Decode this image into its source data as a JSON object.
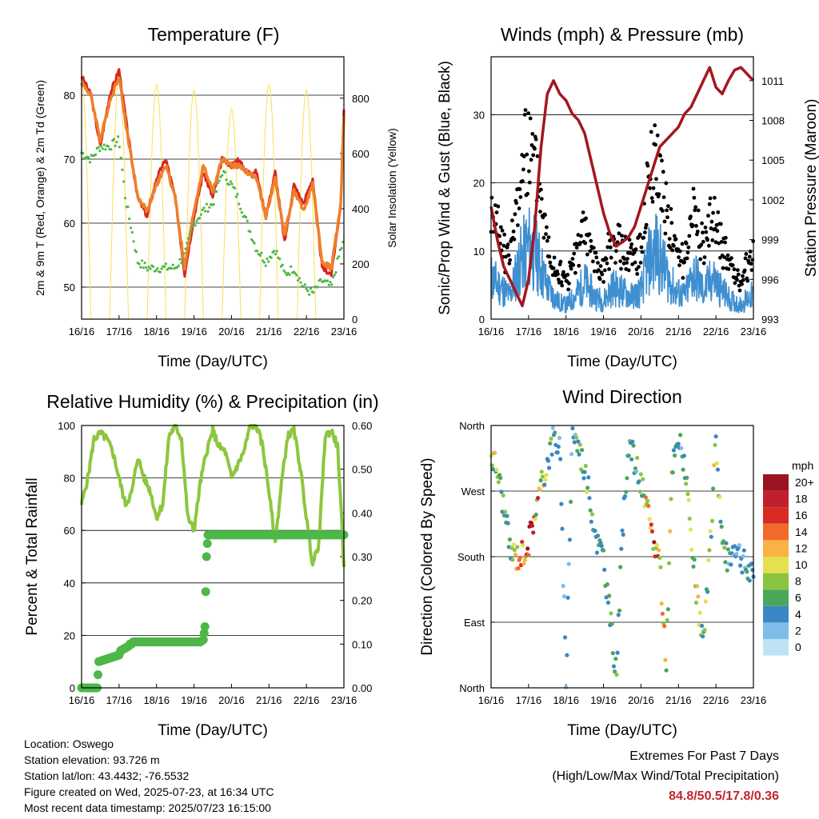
{
  "colors": {
    "red": "#d7261e",
    "orange": "#ef7f2a",
    "green": "#4db848",
    "yellow": "#f9e05a",
    "blue": "#3f8fd0",
    "black": "#000000",
    "maroon": "#a3171f",
    "rh_green": "#8dc63f",
    "rain_green": "#4db848"
  },
  "time_ticks": [
    "16/16",
    "17/16",
    "18/16",
    "19/16",
    "20/16",
    "21/16",
    "22/16",
    "23/16"
  ],
  "chart_data": [
    {
      "id": "temperature",
      "type": "line",
      "title": "Temperature (F)",
      "xlabel": "Time (Day/UTC)",
      "ylabel": "2m & 9m T (Red, Orange) & 2m Td (Green)",
      "y2label": "Solar Insolation (Yellow)",
      "ylim": [
        45,
        86
      ],
      "yticks": [
        50,
        60,
        70,
        80
      ],
      "y2lim": [
        0,
        950
      ],
      "y2ticks": [
        0,
        200,
        400,
        600,
        800
      ],
      "x_hours": [
        0,
        6,
        12,
        18,
        24,
        28,
        32,
        36,
        42,
        48,
        54,
        60,
        66,
        72,
        78,
        84,
        90,
        96,
        100,
        106,
        112,
        118,
        124,
        130,
        136,
        142,
        148,
        154,
        160,
        166,
        168
      ],
      "series": [
        {
          "name": "2m T",
          "color": "#d7261e",
          "values": [
            83,
            80,
            72,
            80,
            84,
            77,
            70,
            64,
            61,
            67,
            70,
            64,
            52,
            61,
            68,
            64,
            70,
            69,
            70,
            68,
            68,
            61,
            68,
            57,
            66,
            63,
            67,
            53,
            52,
            63,
            78
          ]
        },
        {
          "name": "9m T",
          "color": "#ef7f2a",
          "values": [
            82,
            80,
            73,
            79,
            83,
            76,
            70,
            64,
            62,
            66,
            69,
            64,
            53,
            62,
            69,
            65,
            70,
            69,
            69,
            68,
            67,
            61,
            67,
            58,
            65,
            62,
            66,
            54,
            53,
            63,
            77
          ]
        },
        {
          "name": "2m Td",
          "color": "#4db848",
          "values": [
            71,
            70,
            72,
            72,
            73,
            64,
            59,
            54,
            53,
            53,
            53,
            53,
            55,
            60,
            62,
            63,
            68,
            66,
            64,
            60,
            56,
            54,
            56,
            52,
            53,
            50,
            49,
            51,
            50,
            56,
            57
          ]
        }
      ],
      "solar": {
        "peak_hours": [
          0,
          24,
          48,
          72,
          96,
          120,
          144
        ],
        "peaks": [
          860,
          880,
          850,
          830,
          760,
          850,
          830
        ]
      }
    },
    {
      "id": "winds",
      "type": "scatter",
      "title": "Winds (mph) & Pressure (mb)",
      "xlabel": "Time (Day/UTC)",
      "ylabel": "Sonic/Prop Wind & Gust (Blue, Black)",
      "y2label": "Station Pressure (Maroon)",
      "ylim": [
        0,
        38.5
      ],
      "yticks": [
        0,
        10,
        20,
        30
      ],
      "y2lim": [
        993,
        1012.8
      ],
      "y2ticks": [
        993,
        996,
        999,
        1002,
        1005,
        1008,
        1011
      ],
      "pressure": {
        "x_hours": [
          0,
          4,
          8,
          12,
          16,
          20,
          24,
          28,
          32,
          36,
          40,
          44,
          48,
          52,
          56,
          60,
          64,
          68,
          72,
          76,
          80,
          84,
          88,
          92,
          96,
          100,
          104,
          108,
          112,
          116,
          120,
          124,
          128,
          132,
          136,
          140,
          144,
          148,
          152,
          156,
          160,
          164,
          168
        ],
        "values": [
          1001.5,
          999,
          997,
          996,
          995,
          994,
          996,
          1000,
          1006,
          1010,
          1011,
          1010,
          1009.5,
          1008.5,
          1008,
          1007,
          1005,
          1003,
          1001,
          999.5,
          998.5,
          998.8,
          999.2,
          1000,
          1001.5,
          1003,
          1004.5,
          1006,
          1006.5,
          1007,
          1007.5,
          1008.5,
          1009,
          1010,
          1011,
          1012,
          1010.5,
          1010,
          1011,
          1011.8,
          1012,
          1011.5,
          1011
        ]
      },
      "wind_envelope": {
        "x_hours": [
          0,
          6,
          12,
          18,
          24,
          30,
          36,
          42,
          48,
          54,
          60,
          66,
          72,
          78,
          84,
          90,
          96,
          100,
          106,
          112,
          118,
          124,
          130,
          136,
          142,
          148,
          154,
          160,
          166,
          168
        ],
        "values": [
          9,
          7,
          5,
          12,
          16,
          13,
          7,
          4,
          3,
          5,
          8,
          5,
          4,
          7,
          6,
          5,
          6,
          12,
          15,
          10,
          6,
          5,
          10,
          6,
          9,
          6,
          4,
          3,
          5,
          5
        ]
      }
    },
    {
      "id": "humidity",
      "type": "line",
      "title": "Relative Humidity (%) & Precipitation (in)",
      "xlabel": "Time (Day/UTC)",
      "ylabel": "Percent & Total Rainfall",
      "ylim": [
        0,
        100
      ],
      "yticks": [
        0,
        20,
        40,
        60,
        80,
        100
      ],
      "y2lim": [
        0,
        0.6
      ],
      "y2ticks": [
        "0.00",
        "0.10",
        "0.20",
        "0.30",
        "0.40",
        "0.50",
        "0.60"
      ],
      "series": [
        {
          "name": "RH",
          "color": "#8dc63f",
          "x_hours": [
            0,
            4,
            8,
            12,
            16,
            20,
            24,
            28,
            32,
            36,
            40,
            44,
            48,
            52,
            56,
            60,
            64,
            68,
            72,
            76,
            80,
            84,
            88,
            92,
            96,
            100,
            104,
            108,
            112,
            116,
            120,
            124,
            128,
            132,
            136,
            140,
            144,
            148,
            152,
            156,
            160,
            164,
            168
          ],
          "values": [
            70,
            80,
            95,
            97,
            95,
            90,
            80,
            70,
            74,
            88,
            80,
            75,
            65,
            70,
            96,
            100,
            95,
            65,
            60,
            78,
            90,
            98,
            92,
            90,
            80,
            85,
            90,
            100,
            100,
            92,
            75,
            55,
            78,
            96,
            98,
            84,
            65,
            47,
            55,
            96,
            98,
            92,
            47
          ]
        },
        {
          "name": "Rain",
          "color": "#4db848",
          "x_hours": [
            0,
            10,
            11,
            24,
            25,
            30,
            31,
            32,
            33,
            40,
            42,
            44,
            46,
            70,
            72,
            74,
            76,
            78,
            79,
            79.5,
            80,
            80.5,
            81,
            82,
            84,
            86,
            88,
            90,
            92,
            94,
            96,
            168
          ],
          "values": [
            0,
            0,
            0.06,
            0.075,
            0.085,
            0.095,
            0.1,
            0.1,
            0.105,
            0.105,
            0.105,
            0.105,
            0.105,
            0.105,
            0.105,
            0.105,
            0.105,
            0.11,
            0.14,
            0.22,
            0.3,
            0.33,
            0.35,
            0.35,
            0.35,
            0.35,
            0.35,
            0.35,
            0.35,
            0.35,
            0.35,
            0.35
          ]
        }
      ]
    },
    {
      "id": "direction",
      "type": "scatter",
      "title": "Wind Direction",
      "xlabel": "Time (Day/UTC)",
      "ylabel": "Direction (Colored By Speed)",
      "yticks": [
        "North",
        "East",
        "South",
        "West",
        "North"
      ],
      "ylim": [
        0,
        360
      ],
      "legend_title": "mph",
      "legend_labels": [
        "0",
        "2",
        "4",
        "6",
        "8",
        "10",
        "12",
        "14",
        "16",
        "18",
        "20+"
      ],
      "legend_colors": [
        "#bde3f5",
        "#7fbde8",
        "#3a87c6",
        "#4aa65b",
        "#8bc540",
        "#e6df50",
        "#f8b344",
        "#f06a2a",
        "#d92a26",
        "#c0202c",
        "#9a1422"
      ],
      "direction_track": {
        "x_hours": [
          0,
          4,
          8,
          12,
          16,
          20,
          24,
          28,
          32,
          36,
          40,
          44,
          48,
          52,
          56,
          60,
          64,
          68,
          72,
          76,
          80,
          84,
          88,
          92,
          96,
          100,
          104,
          108,
          112,
          116,
          120,
          124,
          128,
          132,
          136,
          140,
          144,
          148,
          152,
          156,
          160,
          164,
          168
        ],
        "values": [
          320,
          300,
          250,
          190,
          180,
          185,
          200,
          240,
          275,
          310,
          345,
          330,
          10,
          355,
          330,
          300,
          250,
          200,
          180,
          100,
          20,
          200,
          340,
          310,
          280,
          240,
          200,
          180,
          30,
          300,
          340,
          310,
          200,
          120,
          60,
          180,
          345,
          200,
          170,
          200,
          180,
          160,
          150
        ]
      }
    }
  ],
  "footer": {
    "location": "Location: Oswego",
    "elevation": "Station elevation: 93.726 m",
    "latlon": "Station lat/lon: 43.4432; -76.5532",
    "created": "Figure created on Wed, 2025-07-23, at 16:34 UTC",
    "recent": "Most recent data timestamp: 2025/07/23 16:15:00"
  },
  "extremes": {
    "title": "Extremes For Past 7 Days",
    "subtitle": "(High/Low/Max Wind/Total Precipitation)",
    "values": "84.8/50.5/17.8/0.36"
  }
}
